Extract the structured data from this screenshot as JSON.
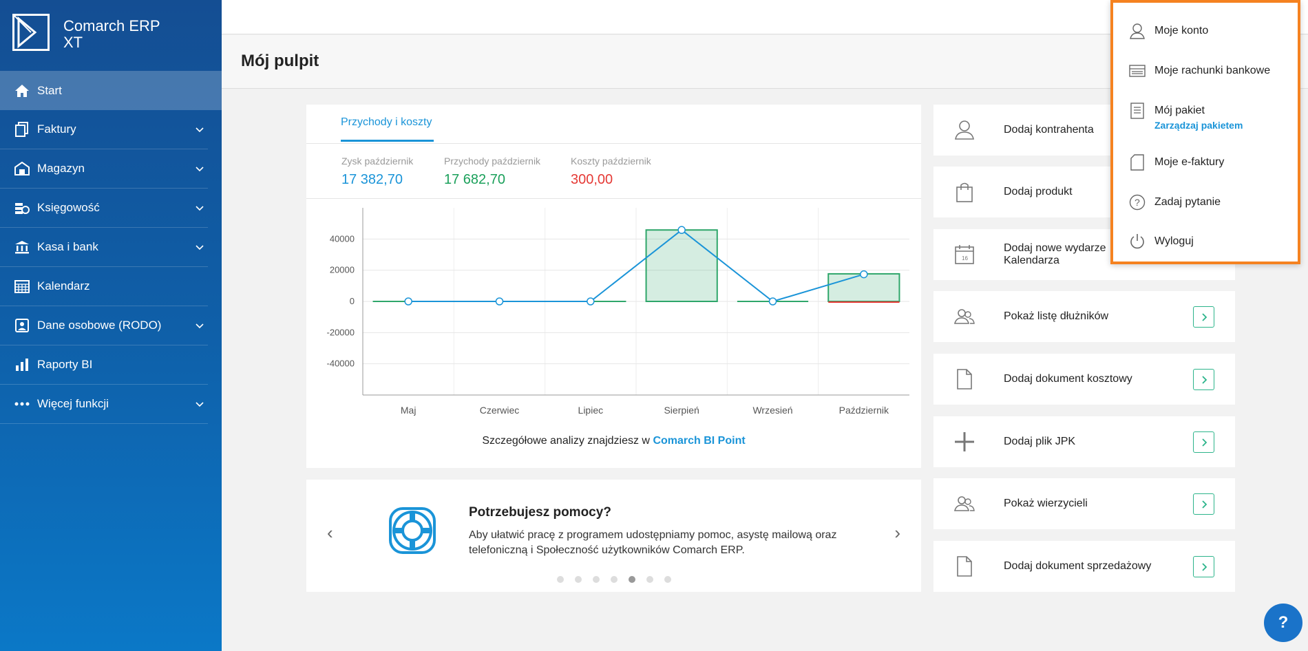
{
  "app": {
    "name_line1": "Comarch ERP",
    "name_line2": "XT"
  },
  "sidebar": {
    "items": [
      {
        "label": "Start",
        "icon": "home-icon",
        "active": true,
        "expandable": false
      },
      {
        "label": "Faktury",
        "icon": "invoices-icon",
        "expandable": true
      },
      {
        "label": "Magazyn",
        "icon": "warehouse-icon",
        "expandable": true
      },
      {
        "label": "Księgowość",
        "icon": "accounting-icon",
        "expandable": true
      },
      {
        "label": "Kasa i bank",
        "icon": "bank-icon",
        "expandable": true
      },
      {
        "label": "Kalendarz",
        "icon": "calendar-icon",
        "expandable": false
      },
      {
        "label": "Dane osobowe (RODO)",
        "icon": "personal-data-icon",
        "expandable": true
      },
      {
        "label": "Raporty BI",
        "icon": "bar-chart-icon",
        "expandable": false
      },
      {
        "label": "Więcej funkcji",
        "icon": "more-icon",
        "expandable": true
      }
    ]
  },
  "page": {
    "title": "Mój pulpit"
  },
  "chart_card": {
    "tab_label": "Przychody i koszty",
    "stats": [
      {
        "label": "Zysk październik",
        "value": "17 382,70",
        "color": "#1a94d8"
      },
      {
        "label": "Przychody październik",
        "value": "17 682,70",
        "color": "#1aa05a"
      },
      {
        "label": "Koszty październik",
        "value": "300,00",
        "color": "#e53935"
      }
    ],
    "note_prefix": "Szczegółowe analizy znajdziesz w ",
    "note_link": "Comarch BI Point"
  },
  "chart_data": {
    "type": "bar",
    "categories": [
      "Maj",
      "Czerwiec",
      "Lipiec",
      "Sierpień",
      "Wrzesień",
      "Październik"
    ],
    "series": [
      {
        "values": [
          0,
          0,
          0,
          45800,
          0,
          17682.7
        ],
        "color": "#2ea66a"
      },
      {
        "values": [
          0,
          0,
          0,
          0,
          0,
          -300
        ],
        "color": "#e53935"
      },
      {
        "values": [
          0,
          0,
          0,
          45800,
          0,
          17382.7
        ],
        "color": "#1a94d8"
      }
    ],
    "yticks": [
      40000,
      20000,
      0,
      -20000,
      -40000
    ],
    "ylim": [
      -60000,
      60000
    ]
  },
  "help": {
    "title": "Potrzebujesz pomocy?",
    "text": "Aby ułatwić pracę z programem udostępniamy pomoc, asystę mailową oraz telefoniczną i Społeczność użytkowników Comarch ERP.",
    "dots": 7,
    "active_dot": 4
  },
  "quick_actions": [
    {
      "label": "Dodaj kontrahenta",
      "icon": "user-icon"
    },
    {
      "label": "Dodaj produkt",
      "icon": "shopping-bag-icon"
    },
    {
      "label": "Dodaj nowe wydarze",
      "label2": "Kalendarza",
      "icon": "calendar-event-icon"
    },
    {
      "label": "Pokaż listę dłużników",
      "icon": "users-icon"
    },
    {
      "label": "Dodaj dokument kosztowy",
      "icon": "document-icon"
    },
    {
      "label": "Dodaj plik JPK",
      "icon": "plus-icon"
    },
    {
      "label": "Pokaż wierzycieli",
      "icon": "users-icon"
    },
    {
      "label": "Dodaj dokument sprzedażowy",
      "icon": "document-icon"
    }
  ],
  "user_menu": {
    "items": [
      {
        "label": "Moje konto",
        "icon": "user-icon"
      },
      {
        "label": "Moje rachunki bankowe",
        "icon": "bank-account-icon"
      },
      {
        "label": "Mój pakiet",
        "sub": "Zarządzaj pakietem",
        "icon": "package-icon"
      },
      {
        "label": "Moje e-faktury",
        "icon": "e-invoice-icon"
      },
      {
        "label": "Zadaj pytanie",
        "icon": "question-icon"
      },
      {
        "label": "Wyloguj",
        "icon": "power-icon"
      }
    ]
  },
  "help_button": {
    "label": "?"
  }
}
